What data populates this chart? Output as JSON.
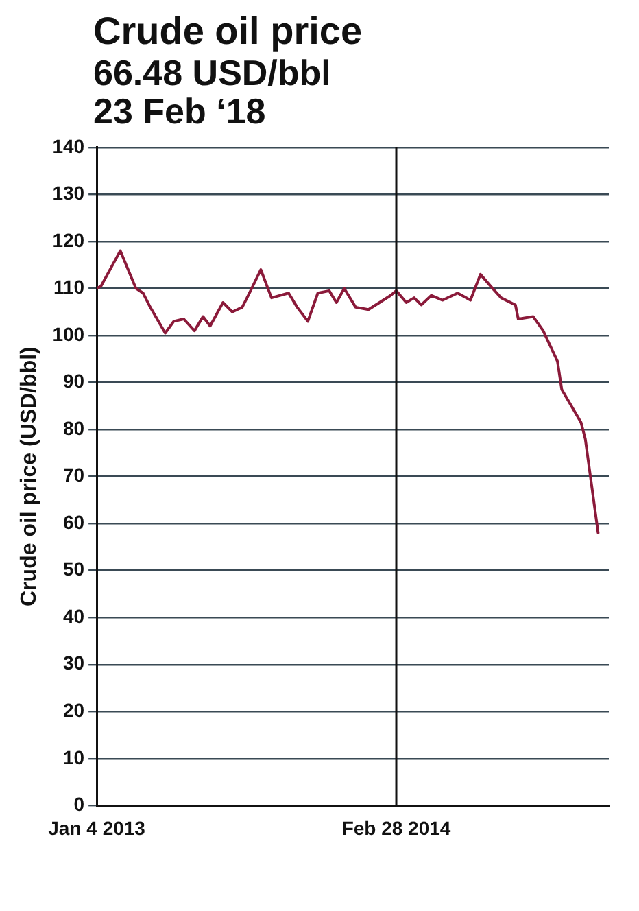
{
  "chart_data": {
    "type": "line",
    "title": "Crude oil price",
    "subtitle": "66.48 USD/bbl\n23 Feb ‘18",
    "ylabel": "Crude oil price (USD/bbl)",
    "x": [
      "2013-01-04",
      "2013-01-10",
      "2013-02-06",
      "2013-02-28",
      "2013-03-10",
      "2013-03-20",
      "2013-04-10",
      "2013-04-22",
      "2013-05-06",
      "2013-05-21",
      "2013-06-02",
      "2013-06-12",
      "2013-06-30",
      "2013-07-13",
      "2013-07-27",
      "2013-08-06",
      "2013-08-22",
      "2013-09-06",
      "2013-09-30",
      "2013-10-12",
      "2013-10-27",
      "2013-11-10",
      "2013-11-26",
      "2013-12-06",
      "2013-12-17",
      "2014-01-02",
      "2014-01-20",
      "2014-02-20",
      "2014-02-28",
      "2014-03-14",
      "2014-03-25",
      "2014-04-04",
      "2014-04-18",
      "2014-05-04",
      "2014-05-25",
      "2014-06-12",
      "2014-06-26",
      "2014-07-13",
      "2014-07-25",
      "2014-08-14",
      "2014-08-18",
      "2014-09-08",
      "2014-09-22",
      "2014-10-12",
      "2014-10-18",
      "2014-11-14",
      "2014-11-20",
      "2014-12-08"
    ],
    "series": [
      {
        "color": "#8b1a3a",
        "values": [
          110,
          110.5,
          118,
          110,
          109,
          106,
          100.5,
          103,
          103.5,
          101,
          104,
          102,
          107,
          105,
          106,
          109,
          114,
          108,
          109,
          106,
          103,
          109,
          109.5,
          107,
          110,
          106,
          105.5,
          108.5,
          109.5,
          107,
          108,
          106.5,
          108.5,
          107.5,
          109,
          107.5,
          113,
          110,
          108,
          106.5,
          103.5,
          104,
          101,
          94.5,
          88.5,
          81.5,
          78,
          58
        ]
      }
    ],
    "xlim": [
      "2013-01-04",
      "2014-12-23"
    ],
    "xticks": [
      {
        "value": "2013-01-04",
        "label": "Jan 4 2013"
      },
      {
        "value": "2014-02-28",
        "label": "Feb 28 2014"
      }
    ],
    "ylim": [
      0,
      140
    ],
    "yticks": [
      0,
      10,
      20,
      30,
      40,
      50,
      60,
      70,
      80,
      90,
      100,
      110,
      120,
      130,
      140
    ],
    "ref_lines": [
      {
        "axis": "x",
        "value": "2014-02-28",
        "color": "#111111"
      }
    ],
    "grid": "y",
    "legend": false,
    "marker": "none",
    "line_style": "solid"
  }
}
